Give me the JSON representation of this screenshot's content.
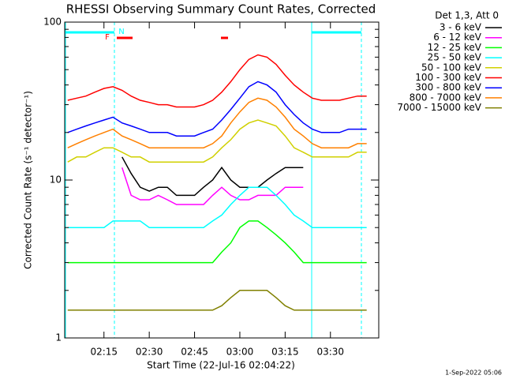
{
  "chart_data": {
    "type": "line",
    "title": "RHESSI Observing Summary Count Rates, Corrected",
    "x_label": "Start Time (22-Jul-16 02:04:22)",
    "y_label": "Corrected Count Rate (s⁻¹ detector⁻¹)",
    "legend_title": "Det 1,3, Att 0",
    "legend_position": "right",
    "footer": "1-Sep-2022 05:06",
    "annotations": [
      "F",
      "N"
    ],
    "log_y": true,
    "xlim": [
      "02:02",
      "03:46"
    ],
    "xticks": [
      "02:15",
      "02:30",
      "02:45",
      "03:00",
      "03:15",
      "03:30"
    ],
    "ylim": [
      1,
      100
    ],
    "yticks": [
      1,
      10,
      100
    ],
    "yminor": [
      2,
      3,
      4,
      5,
      6,
      7,
      8,
      9,
      20,
      30,
      40,
      50,
      60,
      70,
      80,
      90
    ],
    "x": [
      "02:03",
      "02:06",
      "02:09",
      "02:12",
      "02:15",
      "02:18",
      "02:21",
      "02:24",
      "02:27",
      "02:30",
      "02:33",
      "02:36",
      "02:39",
      "02:42",
      "02:45",
      "02:48",
      "02:51",
      "02:54",
      "02:57",
      "03:00",
      "03:03",
      "03:06",
      "03:09",
      "03:12",
      "03:15",
      "03:18",
      "03:21",
      "03:24",
      "03:27",
      "03:30",
      "03:33",
      "03:36",
      "03:39",
      "03:42"
    ],
    "series": [
      {
        "name": "3 - 6 keV",
        "color": "#000000",
        "values": [
          null,
          null,
          null,
          null,
          null,
          null,
          14,
          11,
          9,
          8.5,
          9,
          9,
          8,
          8,
          8,
          9,
          10,
          12,
          10,
          9,
          9,
          9,
          10,
          11,
          12,
          12,
          12,
          null,
          null,
          null,
          null,
          null,
          null,
          null
        ]
      },
      {
        "name": "6 - 12 keV",
        "color": "#ff00ff",
        "values": [
          null,
          null,
          null,
          null,
          null,
          null,
          12,
          8,
          7.5,
          7.5,
          8,
          7.5,
          7,
          7,
          7,
          7,
          8,
          9,
          8,
          7.5,
          7.5,
          8,
          8,
          8,
          9,
          9,
          9,
          null,
          null,
          null,
          null,
          null,
          null,
          null
        ]
      },
      {
        "name": "12 - 25 keV",
        "color": "#00ff00",
        "values": [
          3,
          3,
          3,
          3,
          3,
          3,
          3,
          3,
          3,
          3,
          3,
          3,
          3,
          3,
          3,
          3,
          3,
          3.5,
          4,
          5,
          5.5,
          5.5,
          5,
          4.5,
          4,
          3.5,
          3,
          3,
          3,
          3,
          3,
          3,
          3,
          3
        ]
      },
      {
        "name": "25 - 50 keV",
        "color": "#00ffff",
        "values": [
          5,
          5,
          5,
          5,
          5,
          5.5,
          5.5,
          5.5,
          5.5,
          5,
          5,
          5,
          5,
          5,
          5,
          5,
          5.5,
          6,
          7,
          8,
          9,
          9,
          9,
          8,
          7,
          6,
          5.5,
          5,
          5,
          5,
          5,
          5,
          5,
          5
        ]
      },
      {
        "name": "50 - 100 keV",
        "color": "#d0d000",
        "values": [
          13,
          14,
          14,
          15,
          16,
          16,
          15,
          14,
          14,
          13,
          13,
          13,
          13,
          13,
          13,
          13,
          14,
          16,
          18,
          21,
          23,
          24,
          23,
          22,
          19,
          16,
          15,
          14,
          14,
          14,
          14,
          14,
          15,
          15
        ]
      },
      {
        "name": "100 - 300 keV",
        "color": "#ff0000",
        "values": [
          32,
          33,
          34,
          36,
          38,
          39,
          37,
          34,
          32,
          31,
          30,
          30,
          29,
          29,
          29,
          30,
          32,
          36,
          42,
          50,
          58,
          62,
          60,
          54,
          46,
          40,
          36,
          33,
          32,
          32,
          32,
          33,
          34,
          34
        ]
      },
      {
        "name": "300 - 800 keV",
        "color": "#0000ff",
        "values": [
          20,
          21,
          22,
          23,
          24,
          25,
          23,
          22,
          21,
          20,
          20,
          20,
          19,
          19,
          19,
          20,
          21,
          24,
          28,
          33,
          39,
          42,
          40,
          36,
          30,
          26,
          23,
          21,
          20,
          20,
          20,
          21,
          21,
          21
        ]
      },
      {
        "name": "800 - 7000 keV",
        "color": "#ff8000",
        "values": [
          16,
          17,
          18,
          19,
          20,
          21,
          19,
          18,
          17,
          16,
          16,
          16,
          16,
          16,
          16,
          16,
          17,
          19,
          23,
          27,
          31,
          33,
          32,
          29,
          25,
          21,
          19,
          17,
          16,
          16,
          16,
          16,
          17,
          17
        ]
      },
      {
        "name": "7000 - 15000 keV",
        "color": "#808000",
        "values": [
          1.5,
          1.5,
          1.5,
          1.5,
          1.5,
          1.5,
          1.5,
          1.5,
          1.5,
          1.5,
          1.5,
          1.5,
          1.5,
          1.5,
          1.5,
          1.5,
          1.5,
          1.6,
          1.8,
          2,
          2,
          2,
          2,
          1.8,
          1.6,
          1.5,
          1.5,
          1.5,
          1.5,
          1.5,
          1.5,
          1.5,
          1.5,
          1.5
        ]
      }
    ]
  }
}
